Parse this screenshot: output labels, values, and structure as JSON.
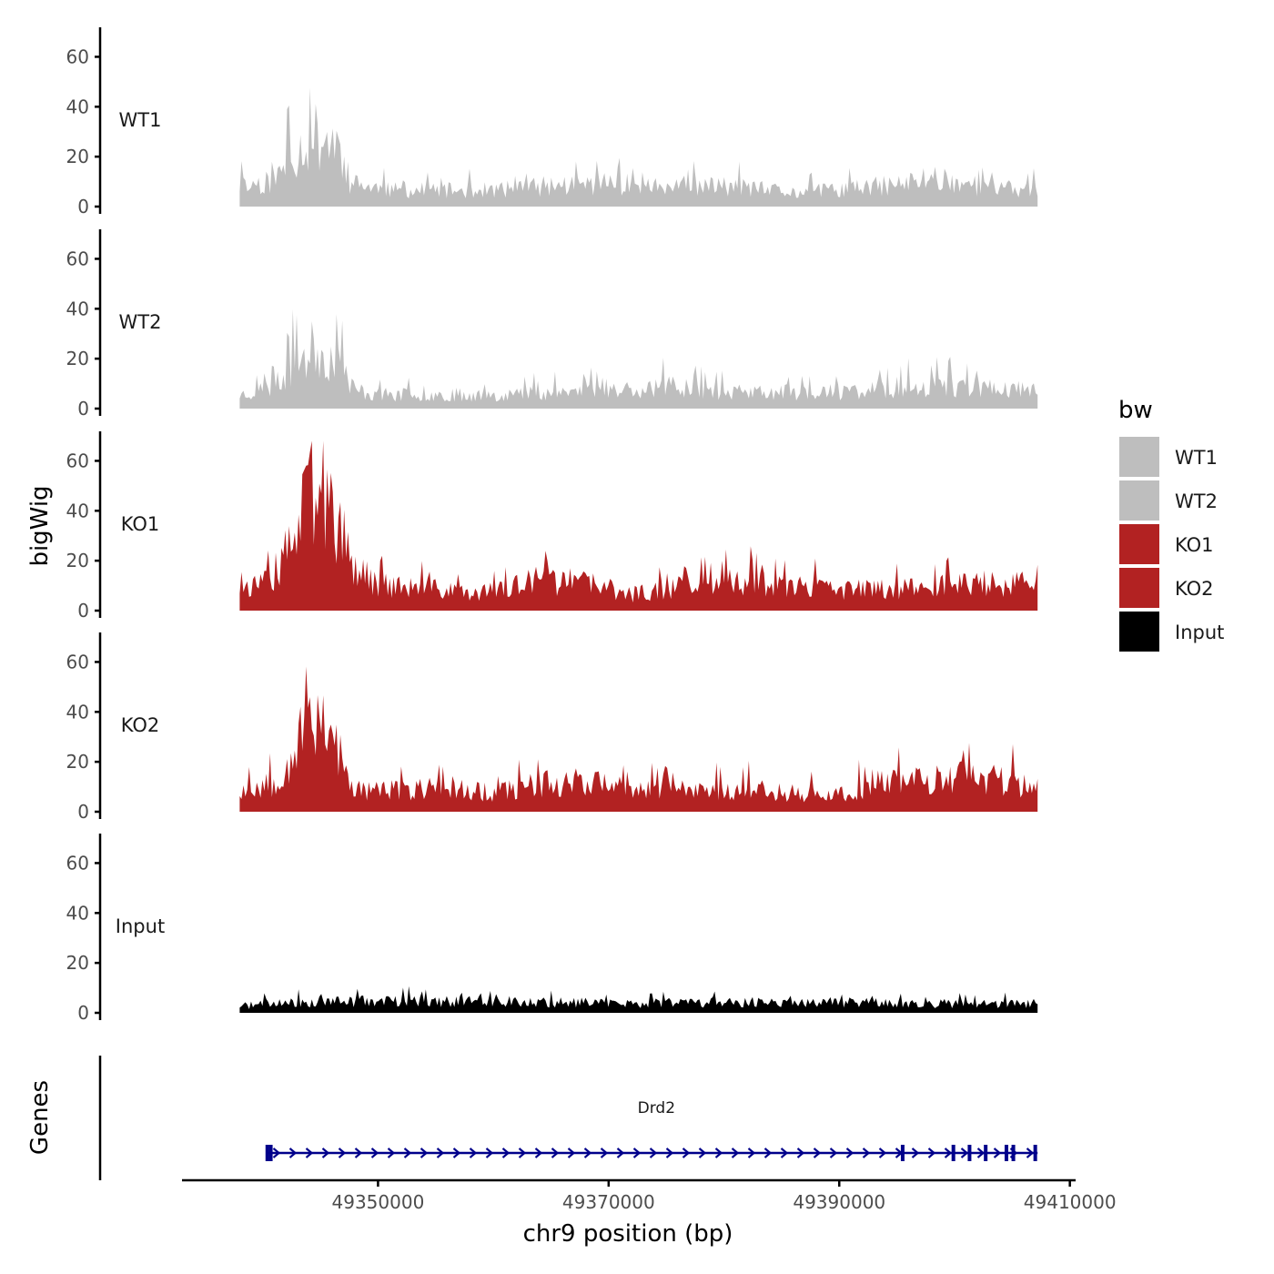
{
  "chart_data": {
    "type": "area",
    "y_axis_title": "bigWig",
    "x_axis_title": "chr9 position (bp)",
    "gene_axis_title": "Genes",
    "ylim": [
      0,
      70
    ],
    "yticks": [
      0,
      20,
      40,
      60
    ],
    "xlim": [
      49333000,
      49410500
    ],
    "xticks": [
      49350000,
      49370000,
      49390000,
      49410000
    ],
    "x_start": 49338000,
    "x_end": 49407200,
    "legend": {
      "title": "bw",
      "entries": [
        {
          "label": "WT1",
          "color": "#bebebe"
        },
        {
          "label": "WT2",
          "color": "#bebebe"
        },
        {
          "label": "KO1",
          "color": "#b22222"
        },
        {
          "label": "KO2",
          "color": "#b22222"
        },
        {
          "label": "Input",
          "color": "#000000"
        }
      ]
    },
    "tracks": [
      {
        "name": "WT1",
        "color": "#bebebe",
        "seed": 11,
        "profile": [
          [
            49338000,
            9
          ],
          [
            49341000,
            11
          ],
          [
            49342500,
            22
          ],
          [
            49344500,
            30
          ],
          [
            49346500,
            28
          ],
          [
            49347500,
            10
          ],
          [
            49351000,
            7
          ],
          [
            49360000,
            7
          ],
          [
            49365000,
            9
          ],
          [
            49370000,
            10
          ],
          [
            49376000,
            8
          ],
          [
            49380000,
            9
          ],
          [
            49386000,
            6
          ],
          [
            49392000,
            8
          ],
          [
            49396000,
            10
          ],
          [
            49398000,
            13
          ],
          [
            49403000,
            8
          ],
          [
            49407200,
            7
          ]
        ]
      },
      {
        "name": "WT2",
        "color": "#bebebe",
        "seed": 23,
        "profile": [
          [
            49338000,
            6
          ],
          [
            49341000,
            9
          ],
          [
            49342500,
            18
          ],
          [
            49344500,
            26
          ],
          [
            49346500,
            20
          ],
          [
            49348000,
            8
          ],
          [
            49350000,
            6
          ],
          [
            49360000,
            6
          ],
          [
            49370000,
            8
          ],
          [
            49376000,
            10
          ],
          [
            49380000,
            7
          ],
          [
            49390000,
            7
          ],
          [
            49397000,
            10
          ],
          [
            49403000,
            9
          ],
          [
            49407200,
            8
          ]
        ]
      },
      {
        "name": "KO1",
        "color": "#b22222",
        "seed": 37,
        "profile": [
          [
            49338000,
            10
          ],
          [
            49341000,
            12
          ],
          [
            49342500,
            30
          ],
          [
            49344500,
            52
          ],
          [
            49346500,
            38
          ],
          [
            49348000,
            14
          ],
          [
            49352000,
            10
          ],
          [
            49356000,
            9
          ],
          [
            49360000,
            8
          ],
          [
            49364000,
            13
          ],
          [
            49368000,
            12
          ],
          [
            49372000,
            7
          ],
          [
            49378000,
            12
          ],
          [
            49382000,
            12
          ],
          [
            49386000,
            10
          ],
          [
            49390000,
            9
          ],
          [
            49396000,
            10
          ],
          [
            49402000,
            12
          ],
          [
            49407200,
            11
          ]
        ]
      },
      {
        "name": "KO2",
        "color": "#b22222",
        "seed": 53,
        "profile": [
          [
            49338000,
            9
          ],
          [
            49341000,
            13
          ],
          [
            49342500,
            24
          ],
          [
            49344000,
            45
          ],
          [
            49346000,
            38
          ],
          [
            49347500,
            10
          ],
          [
            49352000,
            9
          ],
          [
            49356000,
            11
          ],
          [
            49360000,
            8
          ],
          [
            49364000,
            12
          ],
          [
            49368000,
            14
          ],
          [
            49372000,
            9
          ],
          [
            49378000,
            10
          ],
          [
            49384000,
            9
          ],
          [
            49390000,
            7
          ],
          [
            49394000,
            13
          ],
          [
            49398000,
            14
          ],
          [
            49403000,
            15
          ],
          [
            49407200,
            10
          ]
        ]
      },
      {
        "name": "Input",
        "color": "#000000",
        "seed": 71,
        "profile": [
          [
            49338000,
            3
          ],
          [
            49345000,
            5
          ],
          [
            49360000,
            5
          ],
          [
            49372000,
            4
          ],
          [
            49385000,
            5
          ],
          [
            49395000,
            4
          ],
          [
            49407200,
            4
          ]
        ]
      }
    ],
    "genes": [
      {
        "name": "Drd2",
        "start": 49340300,
        "end": 49407200,
        "strand": "+",
        "color": "#00008b",
        "exons": [
          49340400,
          49340700,
          49395500,
          49399900,
          49401300,
          49402700,
          49404500,
          49405100,
          49407000
        ]
      }
    ]
  }
}
